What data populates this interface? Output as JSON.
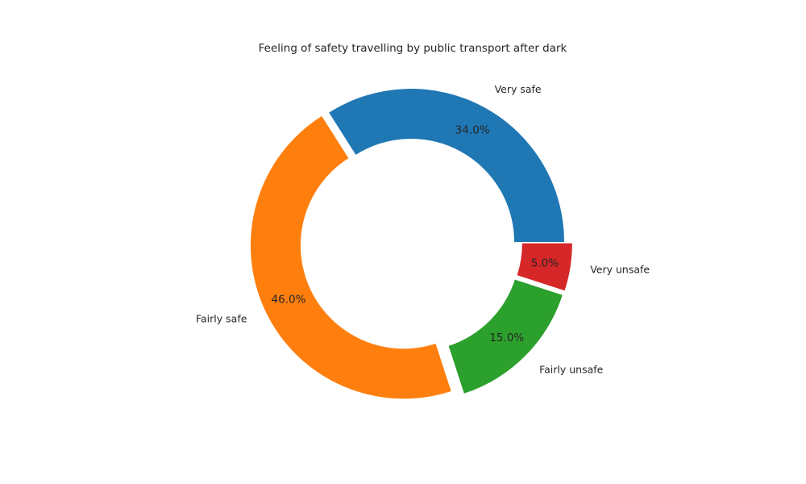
{
  "chart_data": {
    "type": "pie",
    "style": "donut",
    "title": "Feeling of safety travelling by public transport after dark",
    "categories": [
      "Very safe",
      "Fairly safe",
      "Fairly unsafe",
      "Very unsafe"
    ],
    "values": [
      34.0,
      46.0,
      15.0,
      5.0
    ],
    "value_labels": [
      "34.0%",
      "46.0%",
      "15.0%",
      "5.0%"
    ],
    "colors": [
      "#1f77b4",
      "#ff7f0e",
      "#2ca02c",
      "#d62728"
    ],
    "start_angle_deg": 0,
    "direction": "counterclockwise",
    "legend": "none",
    "grid": false
  }
}
